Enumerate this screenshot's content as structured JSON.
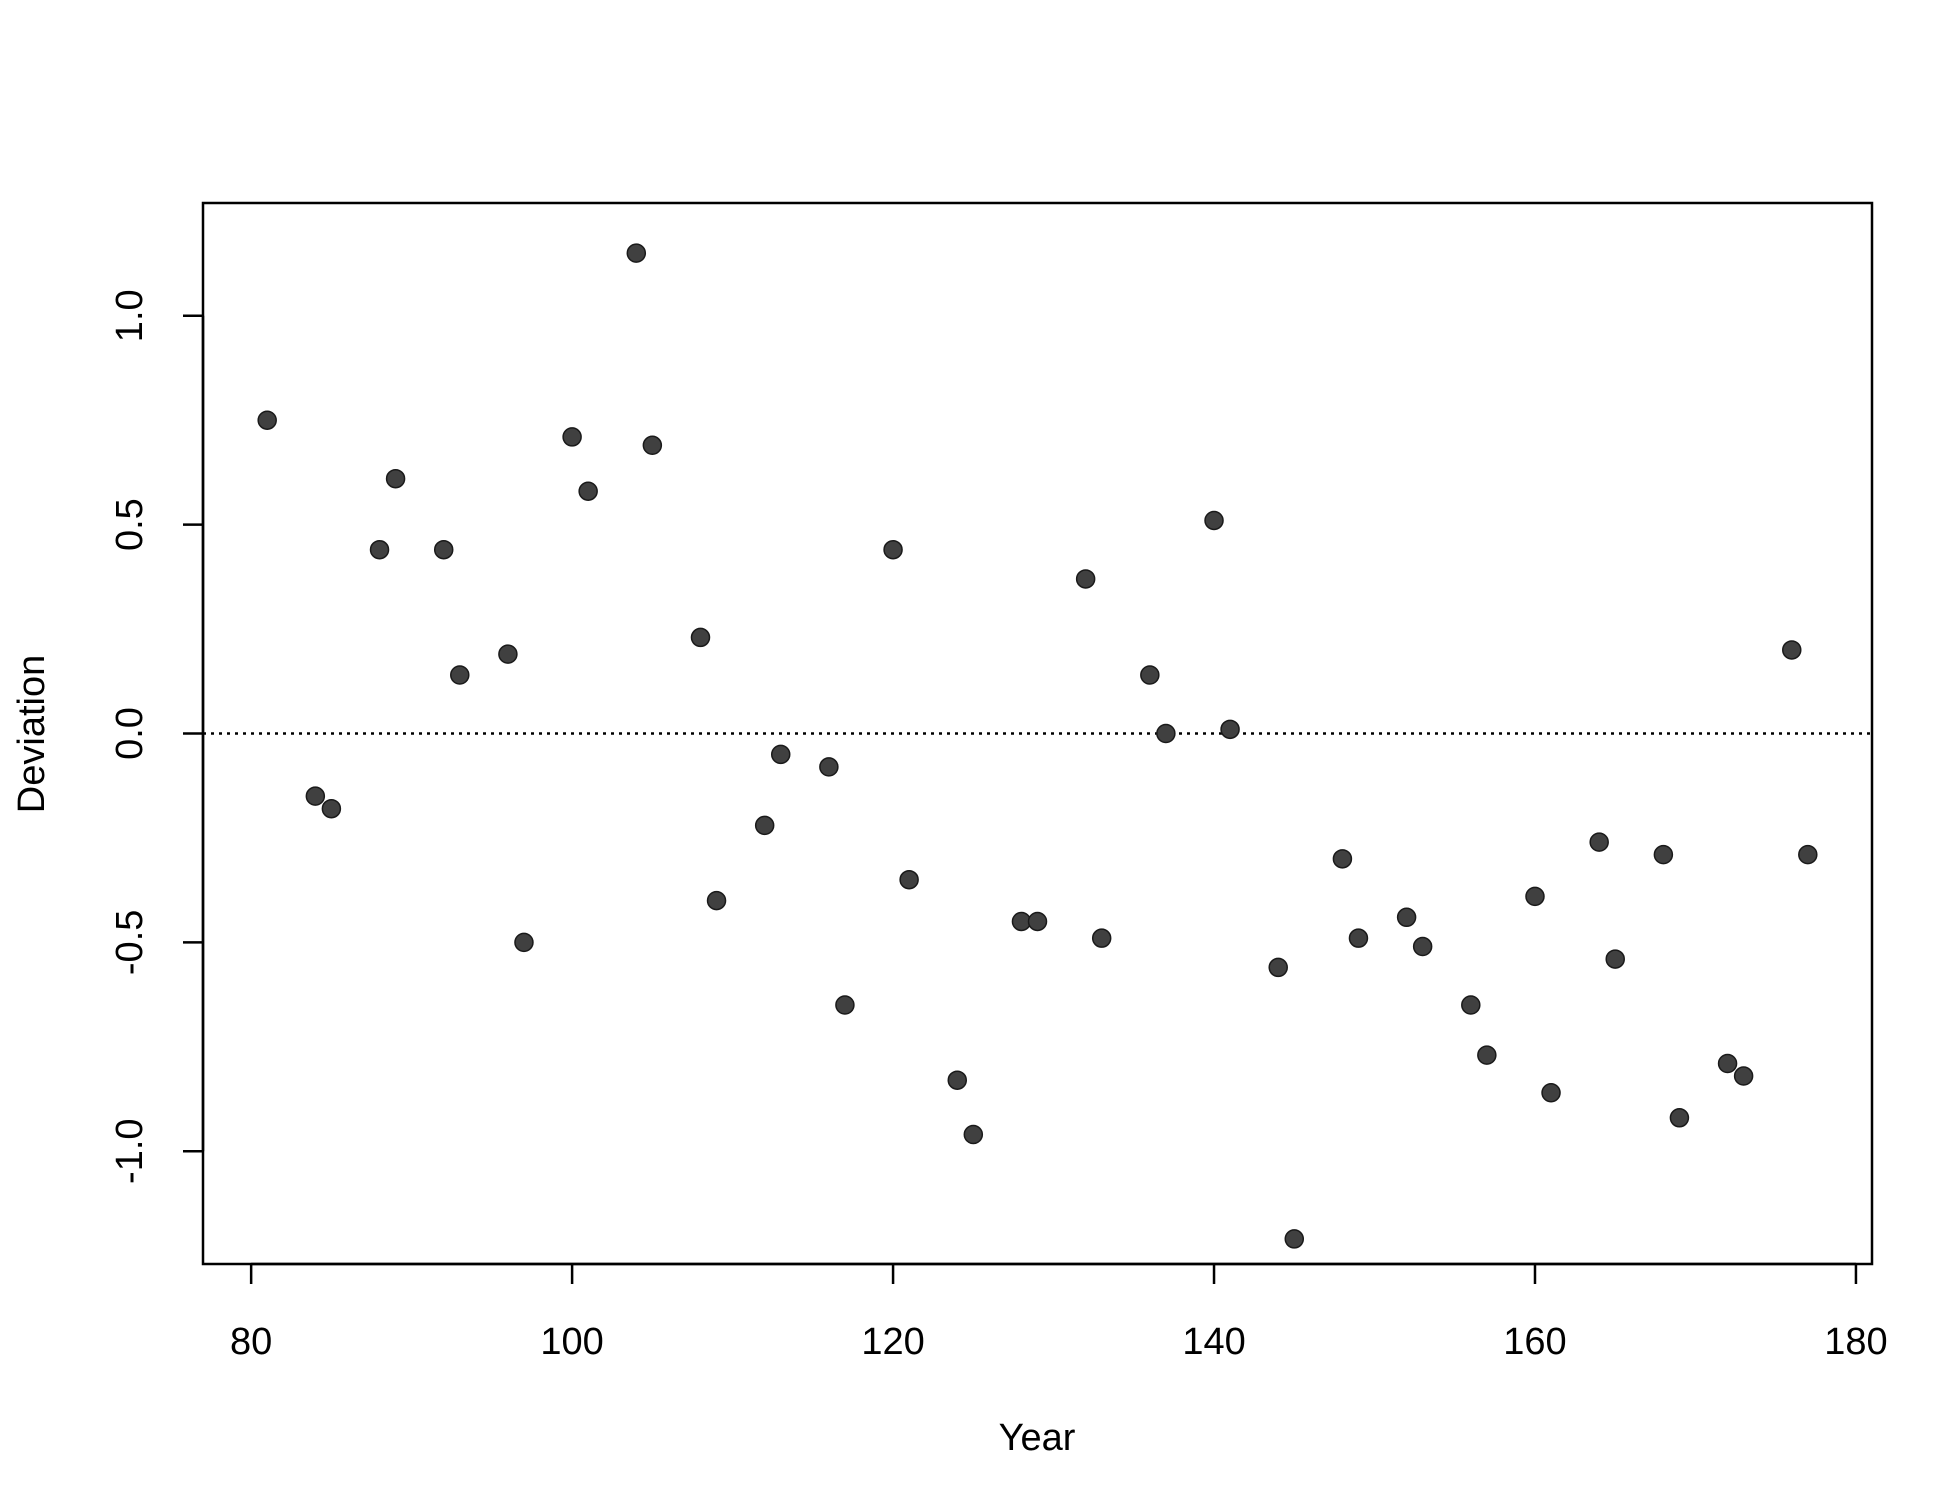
{
  "chart_data": {
    "type": "scatter",
    "title": "",
    "xlabel": "Year",
    "ylabel": "Deviation",
    "xlim": [
      77,
      181
    ],
    "ylim": [
      -1.27,
      1.27
    ],
    "xticks": [
      80,
      100,
      120,
      140,
      160,
      180
    ],
    "xtick_labels": [
      "80",
      "100",
      "120",
      "140",
      "160",
      "180"
    ],
    "yticks": [
      -1.0,
      -0.5,
      0.0,
      0.5,
      1.0
    ],
    "ytick_labels": [
      "-1.0",
      "-0.5",
      "0.0",
      "0.5",
      "1.0"
    ],
    "grid": false,
    "legend": "none",
    "reference_line": {
      "y": 0.0,
      "style": "dotted"
    },
    "point_color": "#404040",
    "series": [
      {
        "points": [
          [
            81,
            0.75
          ],
          [
            84,
            -0.15
          ],
          [
            85,
            -0.18
          ],
          [
            88,
            0.44
          ],
          [
            89,
            0.61
          ],
          [
            92,
            0.44
          ],
          [
            93,
            0.14
          ],
          [
            96,
            0.19
          ],
          [
            97,
            -0.5
          ],
          [
            100,
            0.71
          ],
          [
            101,
            0.58
          ],
          [
            104,
            1.15
          ],
          [
            105,
            0.69
          ],
          [
            108,
            0.23
          ],
          [
            109,
            -0.4
          ],
          [
            112,
            -0.22
          ],
          [
            113,
            -0.05
          ],
          [
            116,
            -0.08
          ],
          [
            117,
            -0.65
          ],
          [
            120,
            0.44
          ],
          [
            121,
            -0.35
          ],
          [
            124,
            -0.83
          ],
          [
            125,
            -0.96
          ],
          [
            128,
            -0.45
          ],
          [
            129,
            -0.45
          ],
          [
            132,
            0.37
          ],
          [
            133,
            -0.49
          ],
          [
            136,
            0.14
          ],
          [
            137,
            0.0
          ],
          [
            140,
            0.51
          ],
          [
            141,
            0.01
          ],
          [
            144,
            -0.56
          ],
          [
            145,
            -1.21
          ],
          [
            148,
            -0.3
          ],
          [
            149,
            -0.49
          ],
          [
            152,
            -0.44
          ],
          [
            153,
            -0.51
          ],
          [
            156,
            -0.65
          ],
          [
            157,
            -0.77
          ],
          [
            160,
            -0.39
          ],
          [
            161,
            -0.86
          ],
          [
            164,
            -0.26
          ],
          [
            165,
            -0.54
          ],
          [
            168,
            -0.29
          ],
          [
            169,
            -0.92
          ],
          [
            172,
            -0.79
          ],
          [
            173,
            -0.82
          ],
          [
            176,
            0.2
          ],
          [
            177,
            -0.29
          ]
        ]
      }
    ]
  }
}
